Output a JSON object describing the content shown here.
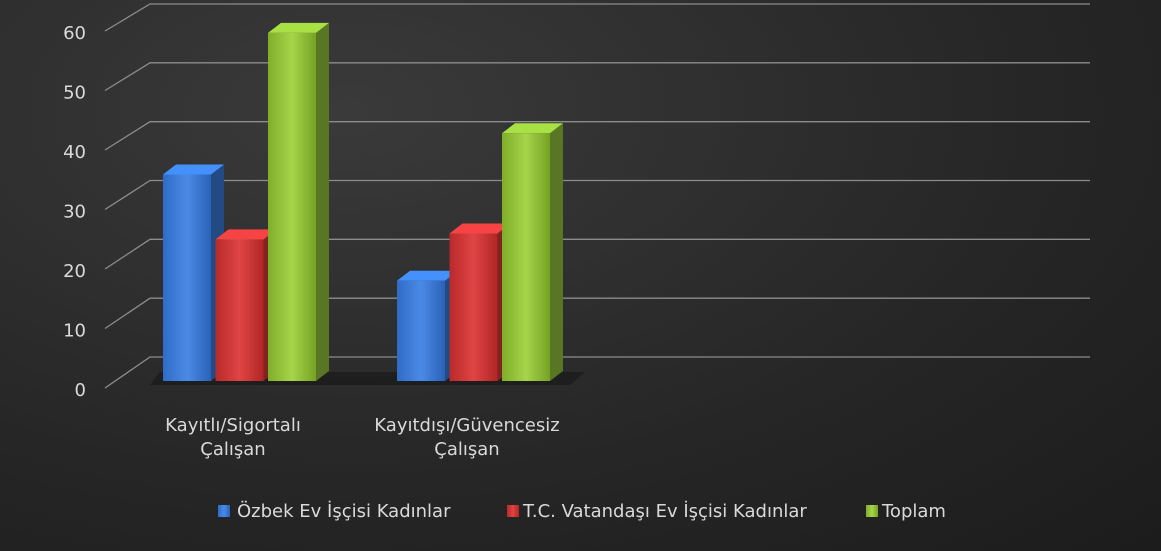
{
  "chart_data": {
    "type": "bar3d",
    "categories": [
      "Kayıtlı/Sigortalı Çalışan",
      "Kayıtdışı/Güvencesiz Çalışan"
    ],
    "series": [
      {
        "name": "Özbek Ev İşçisi Kadınlar",
        "color": "#3b7ddb",
        "values": [
          35,
          17
        ]
      },
      {
        "name": "T.C. Vatandaşı Ev İşçisi Kadınlar",
        "color": "#d63a3a",
        "values": [
          24,
          25
        ]
      },
      {
        "name": "Toplam",
        "color": "#92c43a",
        "values": [
          59,
          42
        ]
      }
    ],
    "ylim": [
      0,
      60
    ],
    "yticks": [
      0,
      10,
      20,
      30,
      40,
      50,
      60
    ],
    "grid": true,
    "legend": "bottom"
  }
}
